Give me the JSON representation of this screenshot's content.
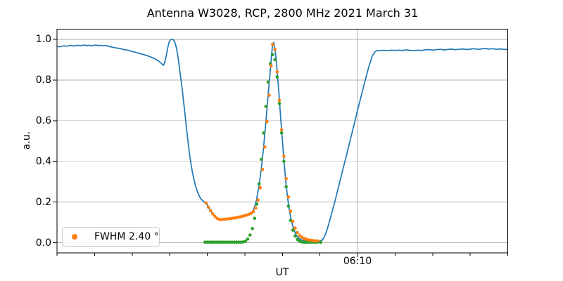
{
  "chart": {
    "title": "Antenna W3028, RCP, 2800 MHz 2021 March 31",
    "xlabel": "UT",
    "ylabel": "a.u.",
    "legend": {
      "label": "FWHM 2.40 °",
      "marker_color": "#ff7f0e",
      "location": "lower left"
    }
  },
  "chart_data": {
    "type": "line+scatter",
    "title": "Antenna W3028, RCP, 2800 MHz 2021 March 31",
    "xlabel": "UT",
    "ylabel": "a.u.",
    "grid": true,
    "grid_color": "#b0b0b0",
    "x_axis": {
      "unit": "UT, minutes since midnight",
      "min": 290,
      "max": 410,
      "minor_ticks": [
        290,
        300,
        310,
        320,
        330,
        340,
        350,
        360,
        370,
        380,
        390,
        400,
        410
      ],
      "major_ticks": [
        {
          "value": 370,
          "label": "06:10"
        }
      ]
    },
    "y_axis": {
      "min": -0.05,
      "max": 1.05,
      "ticks": [
        {
          "value": 0.0,
          "label": "0.0"
        },
        {
          "value": 0.2,
          "label": "0.2"
        },
        {
          "value": 0.4,
          "label": "0.4"
        },
        {
          "value": 0.6,
          "label": "0.6"
        },
        {
          "value": 0.8,
          "label": "0.8"
        },
        {
          "value": 1.0,
          "label": "1.0"
        }
      ]
    },
    "series": [
      {
        "name": "blue-line",
        "type": "line",
        "color": "#1f77b4",
        "points": [
          [
            290.1,
            0.965
          ],
          [
            290.7,
            0.963
          ],
          [
            291.3,
            0.966
          ],
          [
            291.9,
            0.968
          ],
          [
            292.5,
            0.966
          ],
          [
            293.1,
            0.968
          ],
          [
            293.7,
            0.97
          ],
          [
            294.3,
            0.967
          ],
          [
            294.9,
            0.969
          ],
          [
            295.5,
            0.971
          ],
          [
            296.1,
            0.968
          ],
          [
            296.7,
            0.97
          ],
          [
            297.3,
            0.972
          ],
          [
            297.9,
            0.969
          ],
          [
            298.5,
            0.971
          ],
          [
            299.1,
            0.968
          ],
          [
            299.7,
            0.97
          ],
          [
            300.3,
            0.972
          ],
          [
            300.9,
            0.969
          ],
          [
            301.5,
            0.971
          ],
          [
            302.1,
            0.968
          ],
          [
            302.8,
            0.97
          ],
          [
            303.5,
            0.967
          ],
          [
            304.3,
            0.963
          ],
          [
            305.1,
            0.96
          ],
          [
            305.9,
            0.957
          ],
          [
            306.7,
            0.955
          ],
          [
            307.5,
            0.951
          ],
          [
            308.3,
            0.948
          ],
          [
            309.1,
            0.945
          ],
          [
            309.9,
            0.941
          ],
          [
            310.7,
            0.937
          ],
          [
            311.5,
            0.933
          ],
          [
            312.3,
            0.929
          ],
          [
            313.1,
            0.925
          ],
          [
            313.9,
            0.92
          ],
          [
            314.7,
            0.915
          ],
          [
            315.5,
            0.909
          ],
          [
            316.3,
            0.902
          ],
          [
            317.1,
            0.893
          ],
          [
            317.7,
            0.884
          ],
          [
            318.3,
            0.872
          ],
          [
            318.6,
            0.882
          ],
          [
            319.0,
            0.912
          ],
          [
            319.4,
            0.952
          ],
          [
            319.8,
            0.984
          ],
          [
            320.2,
            0.998
          ],
          [
            320.6,
            1.0
          ],
          [
            321.0,
            0.997
          ],
          [
            321.4,
            0.984
          ],
          [
            321.8,
            0.958
          ],
          [
            322.2,
            0.915
          ],
          [
            322.6,
            0.86
          ],
          [
            323.3,
            0.76
          ],
          [
            324.0,
            0.645
          ],
          [
            324.7,
            0.525
          ],
          [
            325.4,
            0.42
          ],
          [
            326.1,
            0.34
          ],
          [
            326.8,
            0.285
          ],
          [
            327.5,
            0.245
          ],
          [
            328.2,
            0.218
          ],
          [
            328.9,
            0.205
          ],
          [
            329.7,
            0.195
          ],
          [
            330.3,
            0.175
          ],
          [
            330.9,
            0.157
          ],
          [
            331.5,
            0.141
          ],
          [
            332.1,
            0.129
          ],
          [
            332.7,
            0.119
          ],
          [
            333.3,
            0.114
          ],
          [
            334.0,
            0.115
          ],
          [
            335.0,
            0.118
          ],
          [
            336.0,
            0.121
          ],
          [
            337.0,
            0.124
          ],
          [
            338.0,
            0.127
          ],
          [
            339.0,
            0.131
          ],
          [
            340.0,
            0.135
          ],
          [
            341.0,
            0.141
          ],
          [
            341.9,
            0.148
          ],
          [
            342.5,
            0.17
          ],
          [
            343.1,
            0.21
          ],
          [
            343.7,
            0.27
          ],
          [
            344.3,
            0.35
          ],
          [
            344.9,
            0.45
          ],
          [
            345.5,
            0.57
          ],
          [
            346.1,
            0.7
          ],
          [
            346.7,
            0.83
          ],
          [
            347.1,
            0.92
          ],
          [
            347.4,
            0.975
          ],
          [
            347.7,
            0.985
          ],
          [
            348.1,
            0.945
          ],
          [
            348.5,
            0.87
          ],
          [
            349.0,
            0.755
          ],
          [
            349.5,
            0.625
          ],
          [
            350.0,
            0.5
          ],
          [
            350.5,
            0.385
          ],
          [
            351.0,
            0.285
          ],
          [
            351.5,
            0.205
          ],
          [
            352.0,
            0.145
          ],
          [
            352.5,
            0.1
          ],
          [
            353.0,
            0.067
          ],
          [
            353.5,
            0.044
          ],
          [
            354.0,
            0.029
          ],
          [
            354.6,
            0.019
          ],
          [
            355.3,
            0.013
          ],
          [
            356.1,
            0.009
          ],
          [
            357.0,
            0.007
          ],
          [
            358.0,
            0.006
          ],
          [
            359.0,
            0.006
          ],
          [
            360.0,
            0.008
          ],
          [
            360.6,
            0.013
          ],
          [
            361.2,
            0.03
          ],
          [
            361.8,
            0.058
          ],
          [
            362.4,
            0.095
          ],
          [
            363.0,
            0.135
          ],
          [
            364.0,
            0.205
          ],
          [
            365.0,
            0.278
          ],
          [
            366.0,
            0.352
          ],
          [
            367.0,
            0.425
          ],
          [
            368.0,
            0.5
          ],
          [
            369.0,
            0.575
          ],
          [
            370.0,
            0.65
          ],
          [
            371.0,
            0.722
          ],
          [
            372.0,
            0.795
          ],
          [
            373.0,
            0.865
          ],
          [
            374.0,
            0.92
          ],
          [
            374.7,
            0.94
          ],
          [
            375.3,
            0.945
          ],
          [
            376.0,
            0.944
          ],
          [
            377.0,
            0.946
          ],
          [
            378.0,
            0.944
          ],
          [
            379.0,
            0.947
          ],
          [
            380.0,
            0.945
          ],
          [
            381.0,
            0.947
          ],
          [
            382.0,
            0.945
          ],
          [
            383.0,
            0.948
          ],
          [
            384.0,
            0.946
          ],
          [
            385.0,
            0.944
          ],
          [
            386.0,
            0.947
          ],
          [
            387.0,
            0.945
          ],
          [
            388.0,
            0.948
          ],
          [
            389.0,
            0.95
          ],
          [
            390.0,
            0.947
          ],
          [
            391.0,
            0.949
          ],
          [
            392.0,
            0.951
          ],
          [
            393.0,
            0.948
          ],
          [
            394.0,
            0.95
          ],
          [
            395.0,
            0.952
          ],
          [
            396.0,
            0.949
          ],
          [
            397.0,
            0.951
          ],
          [
            398.0,
            0.953
          ],
          [
            399.0,
            0.95
          ],
          [
            400.0,
            0.952
          ],
          [
            401.0,
            0.954
          ],
          [
            402.0,
            0.951
          ],
          [
            403.0,
            0.953
          ],
          [
            404.0,
            0.955
          ],
          [
            405.0,
            0.952
          ],
          [
            406.0,
            0.954
          ],
          [
            407.0,
            0.951
          ],
          [
            408.0,
            0.953
          ],
          [
            409.0,
            0.951
          ],
          [
            410.0,
            0.95
          ]
        ]
      },
      {
        "name": "green-dots",
        "type": "scatter",
        "color": "#2ca02c",
        "points": [
          [
            329.4,
            0.003
          ],
          [
            330.0,
            0.003
          ],
          [
            330.6,
            0.003
          ],
          [
            331.2,
            0.003
          ],
          [
            331.8,
            0.003
          ],
          [
            332.4,
            0.003
          ],
          [
            333.0,
            0.003
          ],
          [
            333.6,
            0.003
          ],
          [
            334.2,
            0.003
          ],
          [
            334.8,
            0.003
          ],
          [
            335.4,
            0.003
          ],
          [
            336.0,
            0.003
          ],
          [
            336.6,
            0.003
          ],
          [
            337.2,
            0.003
          ],
          [
            337.8,
            0.003
          ],
          [
            338.4,
            0.003
          ],
          [
            339.0,
            0.003
          ],
          [
            339.6,
            0.004
          ],
          [
            340.2,
            0.008
          ],
          [
            340.8,
            0.018
          ],
          [
            341.4,
            0.038
          ],
          [
            342.0,
            0.07
          ],
          [
            342.6,
            0.12
          ],
          [
            343.2,
            0.19
          ],
          [
            343.8,
            0.29
          ],
          [
            344.4,
            0.41
          ],
          [
            345.0,
            0.54
          ],
          [
            345.6,
            0.67
          ],
          [
            346.2,
            0.79
          ],
          [
            346.8,
            0.88
          ],
          [
            347.4,
            0.925
          ],
          [
            348.0,
            0.9
          ],
          [
            348.6,
            0.815
          ],
          [
            349.2,
            0.685
          ],
          [
            349.8,
            0.54
          ],
          [
            350.4,
            0.4
          ],
          [
            351.0,
            0.275
          ],
          [
            351.6,
            0.18
          ],
          [
            352.2,
            0.11
          ],
          [
            352.8,
            0.062
          ],
          [
            353.4,
            0.033
          ],
          [
            354.0,
            0.016
          ],
          [
            354.6,
            0.008
          ],
          [
            355.2,
            0.004
          ],
          [
            355.8,
            0.003
          ],
          [
            356.4,
            0.003
          ],
          [
            357.0,
            0.003
          ],
          [
            357.6,
            0.003
          ],
          [
            358.2,
            0.003
          ],
          [
            358.8,
            0.003
          ],
          [
            359.4,
            0.003
          ],
          [
            360.2,
            0.003
          ]
        ]
      },
      {
        "name": "orange-dots",
        "type": "scatter",
        "color": "#ff7f0e",
        "legend_label": "FWHM 2.40 °",
        "points": [
          [
            329.7,
            0.195
          ],
          [
            330.3,
            0.175
          ],
          [
            330.9,
            0.157
          ],
          [
            331.5,
            0.141
          ],
          [
            332.1,
            0.129
          ],
          [
            332.7,
            0.119
          ],
          [
            333.3,
            0.114
          ],
          [
            333.9,
            0.114
          ],
          [
            334.5,
            0.115
          ],
          [
            335.1,
            0.116
          ],
          [
            335.7,
            0.118
          ],
          [
            336.3,
            0.119
          ],
          [
            336.9,
            0.121
          ],
          [
            337.5,
            0.122
          ],
          [
            338.1,
            0.124
          ],
          [
            338.7,
            0.127
          ],
          [
            339.3,
            0.13
          ],
          [
            339.9,
            0.133
          ],
          [
            340.5,
            0.136
          ],
          [
            341.1,
            0.14
          ],
          [
            341.7,
            0.145
          ],
          [
            342.3,
            0.153
          ],
          [
            342.9,
            0.17
          ],
          [
            343.5,
            0.21
          ],
          [
            344.1,
            0.27
          ],
          [
            344.7,
            0.36
          ],
          [
            345.3,
            0.47
          ],
          [
            345.9,
            0.595
          ],
          [
            346.5,
            0.725
          ],
          [
            347.0,
            0.87
          ],
          [
            347.4,
            0.975
          ],
          [
            348.0,
            0.95
          ],
          [
            348.6,
            0.84
          ],
          [
            349.2,
            0.7
          ],
          [
            349.8,
            0.555
          ],
          [
            350.4,
            0.425
          ],
          [
            351.0,
            0.315
          ],
          [
            351.6,
            0.225
          ],
          [
            352.2,
            0.155
          ],
          [
            352.8,
            0.105
          ],
          [
            353.4,
            0.072
          ],
          [
            354.0,
            0.05
          ],
          [
            354.6,
            0.036
          ],
          [
            355.2,
            0.027
          ],
          [
            355.8,
            0.021
          ],
          [
            356.4,
            0.017
          ],
          [
            357.0,
            0.014
          ],
          [
            357.6,
            0.012
          ],
          [
            358.2,
            0.01
          ],
          [
            358.8,
            0.009
          ],
          [
            359.4,
            0.009
          ]
        ]
      }
    ]
  }
}
